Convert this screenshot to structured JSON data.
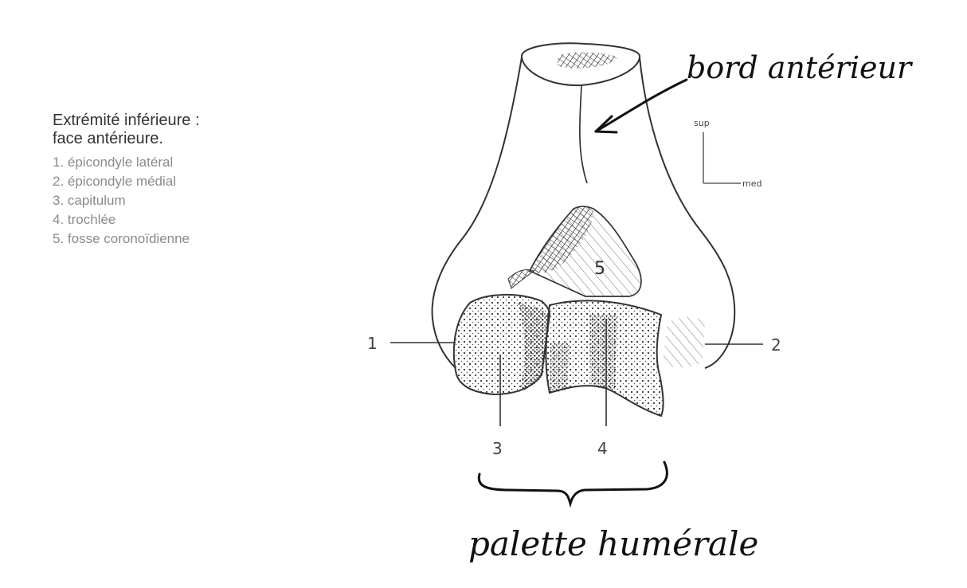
{
  "legend": {
    "title_line1": "Extrémité inférieure :",
    "title_line2": "face antérieure.",
    "items": [
      "1. épicondyle latéral",
      "2. épicondyle médial",
      "3. capitulum",
      "4. trochlée",
      "5. fosse coronoïdienne"
    ]
  },
  "callouts": {
    "n1": "1",
    "n2": "2",
    "n3": "3",
    "n4": "4",
    "n5": "5"
  },
  "orientation": {
    "sup": "sup",
    "med": "med"
  },
  "handwritten": {
    "anterior_border": "bord antérieur",
    "humeral_palette": "palette humérale"
  },
  "colors": {
    "legend_title": "#333333",
    "legend_items": "#8a8a8a",
    "bone_outline": "#333333",
    "handwriting": "#111111"
  }
}
